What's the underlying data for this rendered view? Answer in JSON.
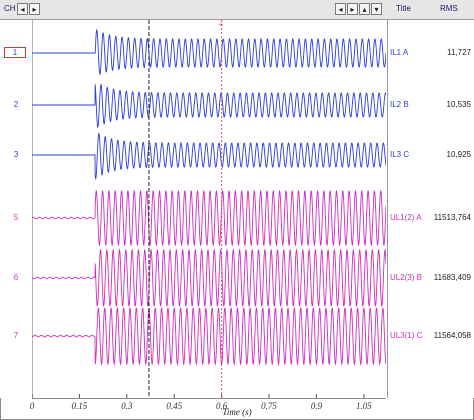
{
  "header": {
    "ch_label": "CH",
    "title_label": "Title",
    "rms_label": "RMS"
  },
  "icons": {
    "nav_left_1": "◂",
    "nav_right_1": "▸",
    "nav_left_2": "◂",
    "nav_right_2": "▸",
    "nav_up": "▴",
    "nav_down": "▾"
  },
  "channels": [
    {
      "num": "1",
      "title": "IL1 A",
      "rms": "11,727",
      "kind": "current",
      "selected": true
    },
    {
      "num": "2",
      "title": "IL2 B",
      "rms": "10,535",
      "kind": "current",
      "selected": false
    },
    {
      "num": "3",
      "title": "IL3 C",
      "rms": "10,925",
      "kind": "current",
      "selected": false
    },
    {
      "num": "5",
      "title": "UL1(2) A",
      "rms": "11513,764",
      "kind": "voltage",
      "selected": false
    },
    {
      "num": "6",
      "title": "UL2(3) B",
      "rms": "11683,409",
      "kind": "voltage",
      "selected": false
    },
    {
      "num": "7",
      "title": "UL3(1) C",
      "rms": "11564,058",
      "kind": "voltage",
      "selected": false
    }
  ],
  "colors": {
    "current": "#2b3fcf",
    "voltage": "#cc2fbf",
    "cursor_1": "#202020",
    "cursor_2": "#e05060"
  },
  "x_axis": {
    "label": "Time (s)",
    "ticks": [
      "0",
      "0.15",
      "0.3",
      "0.45",
      "0.6",
      "0.75",
      "0.9",
      "1.05"
    ],
    "tick_values": [
      0,
      0.15,
      0.3,
      0.45,
      0.6,
      0.75,
      0.9,
      1.05
    ],
    "range": [
      0,
      1.12
    ]
  },
  "cursors": [
    0.37,
    0.6
  ],
  "fault_time": 0.2
}
